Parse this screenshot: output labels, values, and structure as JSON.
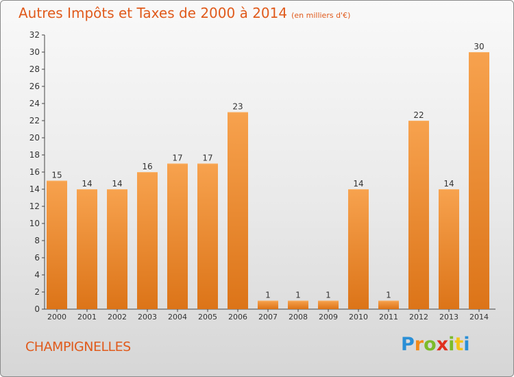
{
  "title": "Autres Impôts et Taxes de 2000 à 2014",
  "unit": "(en milliers d'€)",
  "commune": "CHAMPIGNELLES",
  "logo": "Proxiti",
  "colors": {
    "bar_top": "#f7a24e",
    "bar_bottom": "#dc7418",
    "title": "#e05a1b"
  },
  "chart_data": {
    "type": "bar",
    "title": "Autres Impôts et Taxes de 2000 à 2014",
    "subtitle": "(en milliers d'€)",
    "categories": [
      "2000",
      "2001",
      "2002",
      "2003",
      "2004",
      "2005",
      "2006",
      "2007",
      "2008",
      "2009",
      "2010",
      "2011",
      "2012",
      "2013",
      "2014"
    ],
    "values": [
      15,
      14,
      14,
      16,
      17,
      17,
      23,
      1,
      1,
      1,
      14,
      1,
      22,
      14,
      30
    ],
    "ylim": [
      0,
      32
    ],
    "yticks": [
      0,
      2,
      4,
      6,
      8,
      10,
      12,
      14,
      16,
      18,
      20,
      22,
      24,
      26,
      28,
      30,
      32
    ],
    "grid": false,
    "data_labels": true
  }
}
